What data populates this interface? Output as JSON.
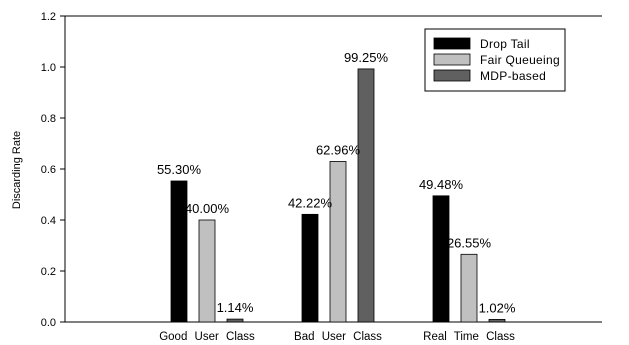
{
  "chart_data": {
    "type": "bar",
    "title": "",
    "xlabel": "",
    "ylabel": "Discarding Rate",
    "ylim": [
      0,
      1.2
    ],
    "yticks": [
      "0.0",
      "0.2",
      "0.4",
      "0.6",
      "0.8",
      "1.0",
      "1.2"
    ],
    "grid": false,
    "legend_position": "top-right",
    "categories": [
      "Good  User  Class",
      "Bad  User  Class",
      "Real  Time  Class"
    ],
    "series": [
      {
        "name": "Drop Tail",
        "color": "#000000",
        "values": [
          0.553,
          0.4222,
          0.4948
        ],
        "labels": [
          "55.30%",
          "42.22%",
          "49.48%"
        ]
      },
      {
        "name": "Fair Queueing",
        "color": "#c0c0c0",
        "values": [
          0.4,
          0.6296,
          0.2655
        ],
        "labels": [
          "40.00%",
          "62.96%",
          "26.55%"
        ]
      },
      {
        "name": "MDP-based",
        "color": "#606060",
        "values": [
          0.0114,
          0.9925,
          0.0102
        ],
        "labels": [
          "1.14%",
          "99.25%",
          "1.02%"
        ]
      }
    ]
  }
}
